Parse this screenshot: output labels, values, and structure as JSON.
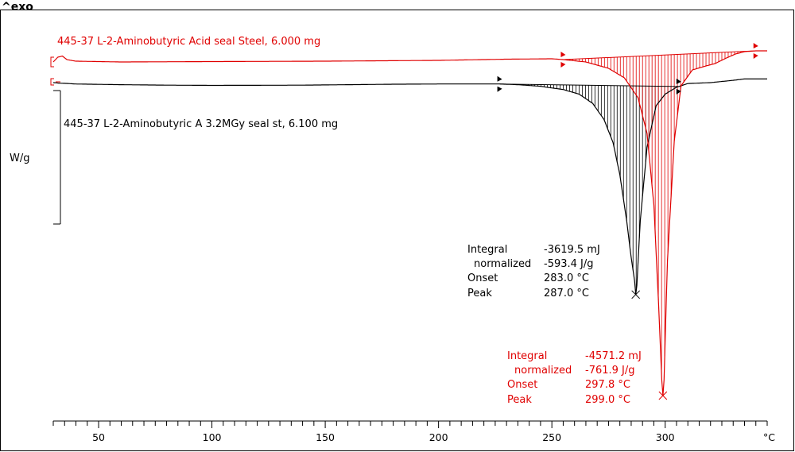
{
  "chart_data": {
    "type": "line",
    "exo_label": "^exo",
    "ylabel": "W/g",
    "xunit": "°C",
    "xlim": [
      30,
      345
    ],
    "xticks": [
      50,
      100,
      150,
      200,
      250,
      300
    ],
    "colors": {
      "sample1": "#000000",
      "sample2": "#e00000"
    },
    "series": [
      {
        "name": "445-37 L-2-Aminobutyric A 3.2MGy seal st, 6.100 mg",
        "color": "#000000",
        "x": [
          30,
          33,
          36,
          40,
          60,
          80,
          100,
          120,
          140,
          160,
          180,
          200,
          220,
          227,
          235,
          245,
          255,
          262,
          268,
          273,
          277,
          280,
          283,
          285,
          286.5,
          287,
          287.5,
          289,
          292,
          296,
          300,
          305,
          310,
          320,
          330,
          335,
          345
        ],
        "y": [
          0,
          -0.12,
          -0.18,
          -0.3,
          -0.45,
          -0.55,
          -0.6,
          -0.58,
          -0.55,
          -0.45,
          -0.35,
          -0.3,
          -0.3,
          -0.3,
          -0.45,
          -0.8,
          -1.5,
          -2.5,
          -4.5,
          -8,
          -13,
          -20,
          -30,
          -38,
          -43,
          -46,
          -44,
          -30,
          -14,
          -5,
          -2.5,
          -1,
          -0.2,
          0,
          0.5,
          0.8,
          0.8
        ],
        "integral": "-3619.5 mJ",
        "normalized": "-593.4 J/g",
        "onset": "283.0 °C",
        "peak": "287.0 °C"
      },
      {
        "name": "445-37 L-2-Aminobutyric Acid seal Steel, 6.000 mg",
        "color": "#e00000",
        "x": [
          30,
          32,
          34,
          36,
          40,
          60,
          100,
          150,
          200,
          230,
          250,
          255,
          265,
          275,
          282,
          288,
          292,
          295,
          297,
          298.5,
          299,
          299.5,
          301,
          304,
          307,
          312,
          318,
          322,
          327,
          331,
          335,
          340,
          345
        ],
        "y": [
          0,
          0.6,
          0.75,
          0.3,
          0.1,
          0,
          0.05,
          0.1,
          0.2,
          0.35,
          0.4,
          0.3,
          0,
          -0.8,
          -2,
          -4.5,
          -9,
          -18,
          -30,
          -40,
          -42,
          -40,
          -25,
          -10,
          -3,
          -1,
          -0.5,
          -0.2,
          0.5,
          1.0,
          1.3,
          1.4,
          1.4
        ],
        "integral": "-4571.2 mJ",
        "normalized": "-761.9 J/g",
        "onset": "297.8 °C",
        "peak": "299.0 °C"
      }
    ]
  },
  "annotation_labels": {
    "integral": "Integral",
    "normalized": "normalized",
    "onset": "Onset",
    "peak": "Peak"
  }
}
